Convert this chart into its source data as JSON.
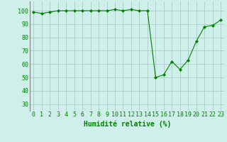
{
  "x": [
    0,
    1,
    2,
    3,
    4,
    5,
    6,
    7,
    8,
    9,
    10,
    11,
    12,
    13,
    14,
    15,
    16,
    17,
    18,
    19,
    20,
    21,
    22,
    23
  ],
  "y": [
    99,
    98,
    99,
    100,
    100,
    100,
    100,
    100,
    100,
    100,
    101,
    100,
    101,
    100,
    100,
    50,
    52,
    62,
    56,
    63,
    77,
    88,
    89,
    93
  ],
  "line_color": "#008000",
  "marker": "D",
  "marker_size": 2,
  "bg_color": "#cff0ea",
  "grid_color": "#aaccc6",
  "xlabel": "Humidité relative (%)",
  "xlabel_color": "#008000",
  "xlabel_fontsize": 7,
  "tick_color": "#008000",
  "tick_fontsize": 6,
  "yticks": [
    30,
    40,
    50,
    60,
    70,
    80,
    90,
    100
  ],
  "ylim": [
    25,
    107
  ],
  "xlim": [
    -0.5,
    23.5
  ]
}
